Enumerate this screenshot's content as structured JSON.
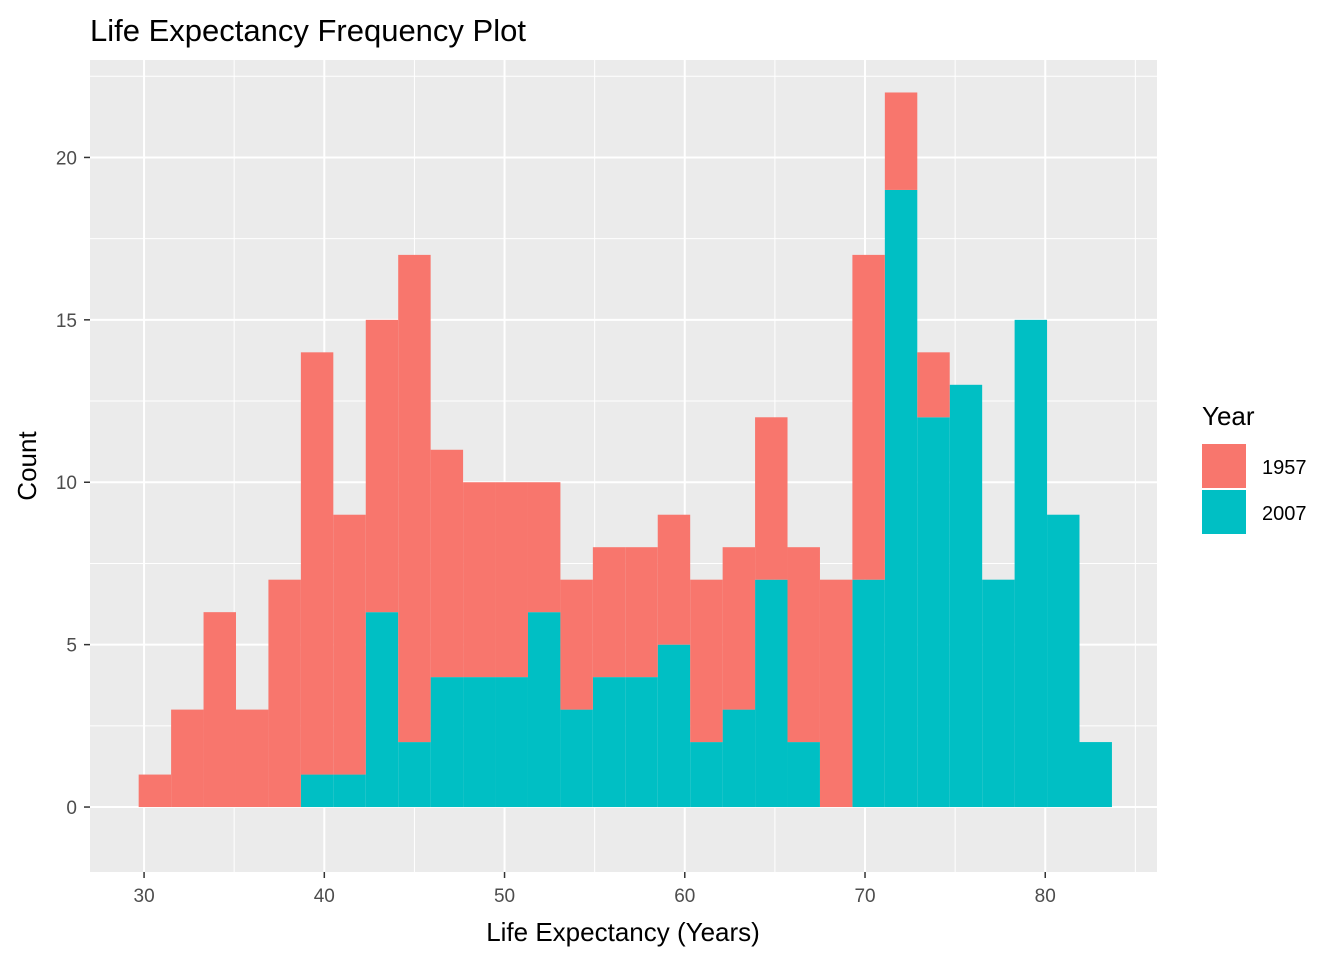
{
  "chart_data": {
    "type": "bar",
    "subtype": "stacked-histogram",
    "title": "Life Expectancy Frequency Plot",
    "xlabel": "Life Expectancy (Years)",
    "ylabel": "Count",
    "xlim": [
      27,
      86.2
    ],
    "ylim": [
      -2,
      23
    ],
    "xticks": [
      30,
      40,
      50,
      60,
      70,
      80
    ],
    "yticks": [
      0,
      5,
      10,
      15,
      20
    ],
    "bin_width": 1.8,
    "bin_starts": [
      29.7,
      31.5,
      33.3,
      35.1,
      36.9,
      38.7,
      40.5,
      42.3,
      44.1,
      45.9,
      47.7,
      49.5,
      51.3,
      53.1,
      54.9,
      56.7,
      58.5,
      60.3,
      62.1,
      63.9,
      65.7,
      67.5,
      69.3,
      71.1,
      72.9,
      74.7,
      76.5,
      78.3,
      80.1,
      81.9
    ],
    "series": [
      {
        "name": "1957",
        "color": "#F8766D",
        "values": [
          1,
          3,
          6,
          3,
          7,
          13,
          8,
          9,
          15,
          7,
          6,
          6,
          4,
          4,
          4,
          4,
          4,
          5,
          5,
          5,
          6,
          7,
          10,
          3,
          2,
          0,
          0,
          0,
          0,
          0
        ]
      },
      {
        "name": "2007",
        "color": "#00BFC4",
        "values": [
          0,
          0,
          0,
          0,
          0,
          1,
          1,
          6,
          2,
          4,
          4,
          4,
          6,
          3,
          4,
          4,
          5,
          2,
          3,
          7,
          2,
          0,
          7,
          19,
          12,
          13,
          7,
          15,
          9,
          2
        ]
      }
    ],
    "grid": true,
    "panel_background": "#EBEBEB",
    "legend": {
      "title": "Year",
      "position": "right",
      "entries": [
        "1957",
        "2007"
      ]
    }
  }
}
